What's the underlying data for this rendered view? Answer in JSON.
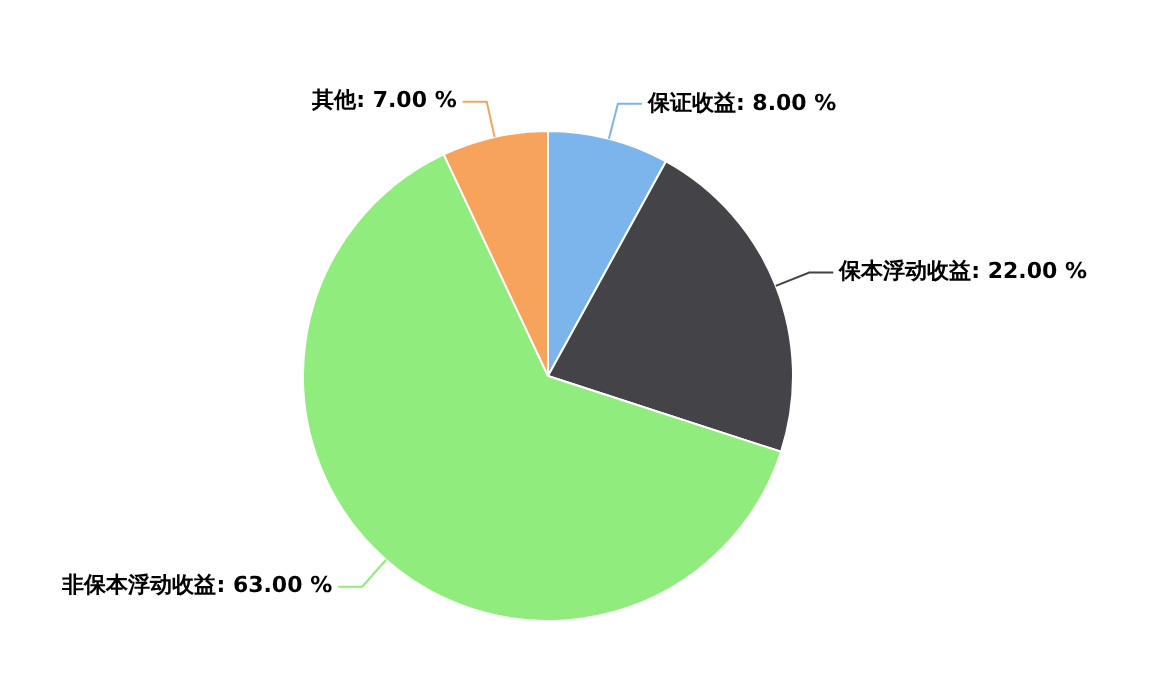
{
  "chart_data": {
    "type": "pie",
    "categories": [
      "保证收益",
      "保本浮动收益",
      "非保本浮动收益",
      "其他"
    ],
    "values": [
      8,
      22,
      63,
      7
    ],
    "colors": [
      "#7cb5ec",
      "#434348",
      "#90ed7d",
      "#f7a35c"
    ],
    "value_labels": [
      "8.00 %",
      "22.00 %",
      "63.00 %",
      "7.00 %"
    ],
    "legend": false
  }
}
